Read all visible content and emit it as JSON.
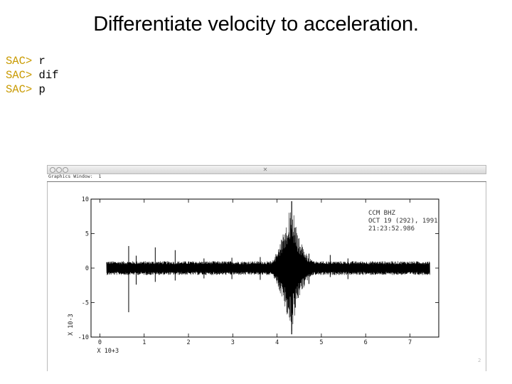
{
  "slide": {
    "title": "Differentiate velocity to acceleration.",
    "page_number": "2"
  },
  "terminal": {
    "prompt": "SAC>",
    "prompt_color": "#c99a00",
    "lines": [
      {
        "prompt": "SAC>",
        "command": " r"
      },
      {
        "prompt": "SAC>",
        "command": " dif"
      },
      {
        "prompt": "SAC>",
        "command": " p"
      }
    ]
  },
  "window": {
    "titlebar_icon": "close-icon",
    "title": "Graphics Window:  1"
  },
  "chart_data": {
    "type": "line",
    "title": "",
    "annotation": [
      "CCM  BHZ",
      "OCT 19 (292), 1991",
      "21:23:52.986"
    ],
    "xlabel": "X 10+3",
    "ylabel": "X 10-3",
    "xlim": [
      -0.2,
      7.65
    ],
    "ylim": [
      -10,
      10
    ],
    "x_ticks": [
      0,
      1,
      2,
      3,
      4,
      5,
      6,
      7
    ],
    "x_tick_labels": [
      "0",
      "1",
      "2",
      "3",
      "4",
      "5",
      "6",
      "7"
    ],
    "y_ticks": [
      10,
      5,
      0,
      -5,
      -10
    ],
    "y_tick_labels": [
      "10",
      "5",
      "0",
      "-5",
      "-10"
    ],
    "grid": false,
    "series": [
      {
        "color": "#000000",
        "x_range": [
          0.15,
          7.45
        ],
        "background_amplitude": 1.0,
        "spikes": [
          {
            "x": 0.65,
            "min": -6.4,
            "max": 3.2
          },
          {
            "x": 0.82,
            "min": -2.4,
            "max": 1.8
          },
          {
            "x": 1.25,
            "min": -2.0,
            "max": 3.0
          },
          {
            "x": 1.7,
            "min": -1.8,
            "max": 2.6
          },
          {
            "x": 2.35,
            "min": -1.5,
            "max": 1.4
          },
          {
            "x": 2.98,
            "min": -1.6,
            "max": 1.5
          },
          {
            "x": 3.62,
            "min": -1.7,
            "max": 1.6
          }
        ],
        "event": {
          "start": 3.75,
          "peak": 4.33,
          "end": 5.05,
          "min": -9.6,
          "max": 9.7
        },
        "coda_spikes": [
          {
            "x": 4.72,
            "min": -2.3,
            "max": 2.1
          },
          {
            "x": 5.2,
            "min": -1.3,
            "max": 1.9
          },
          {
            "x": 5.6,
            "min": -1.6,
            "max": 1.4
          }
        ]
      }
    ]
  }
}
